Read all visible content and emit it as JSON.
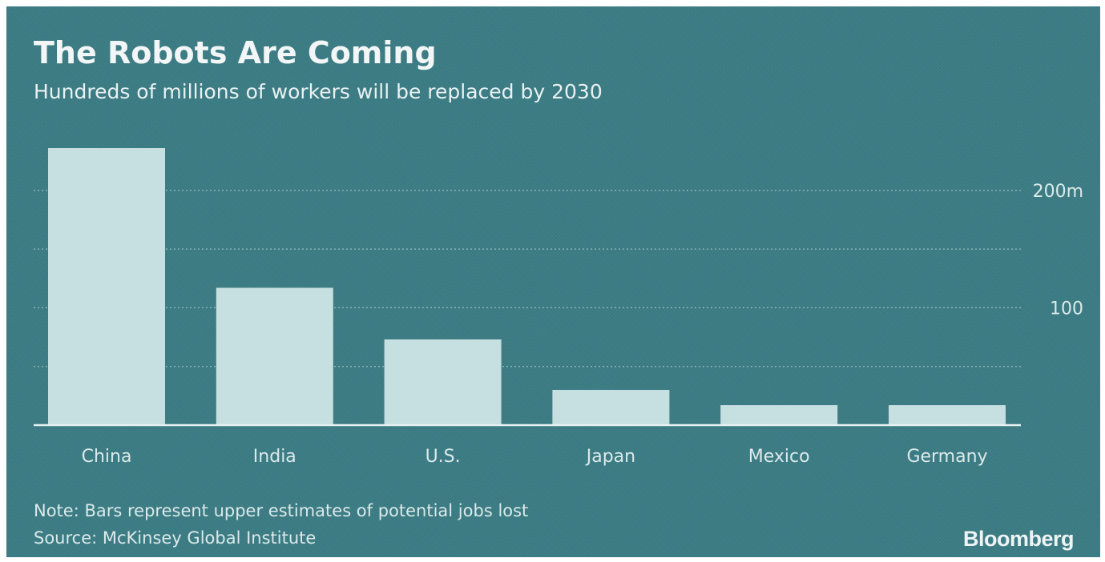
{
  "header": {
    "title": "The Robots Are Coming",
    "subtitle": "Hundreds of millions of workers will be replaced by 2030"
  },
  "footer": {
    "note": "Note: Bars represent upper estimates of potential jobs lost",
    "source": "Source: McKinsey Global Institute",
    "brand": "Bloomberg"
  },
  "colors": {
    "background": "#3b7c84",
    "bar": "#c6dfe0",
    "text": "#dbe9ea"
  },
  "chart_data": {
    "type": "bar",
    "title": "The Robots Are Coming",
    "subtitle": "Hundreds of millions of workers will be replaced by 2030",
    "xlabel": "",
    "ylabel": "",
    "categories": [
      "China",
      "India",
      "U.S.",
      "Japan",
      "Mexico",
      "Germany"
    ],
    "values": [
      236,
      117,
      73,
      30,
      17,
      17
    ],
    "ylim": [
      0,
      236
    ],
    "yticks": [
      {
        "value": 200,
        "label": "200m"
      },
      {
        "value": 100,
        "label": "100"
      }
    ],
    "gridlines": [
      50,
      100,
      150,
      200
    ],
    "grid": true,
    "grid_style": "dotted",
    "axis_side": "right",
    "legend": "none"
  }
}
